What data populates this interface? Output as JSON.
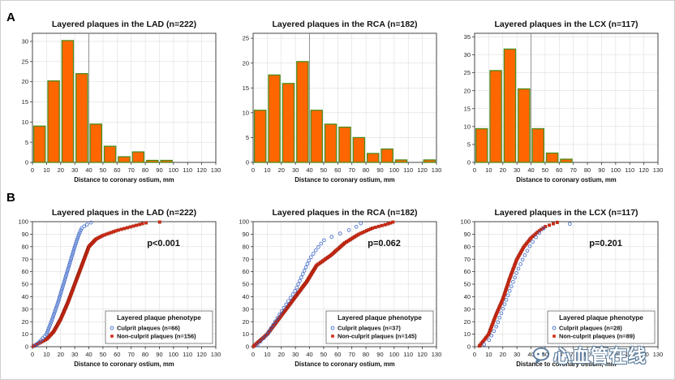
{
  "panel_labels": [
    "A",
    "B"
  ],
  "colors": {
    "bar_fill": "#ff6600",
    "bar_stroke": "#4c8c1c",
    "culprit": "#3a66c8",
    "nonculprit": "#d02a14",
    "axis": "#333333",
    "grid": "#dddddd",
    "divider": "#888888"
  },
  "chart_data": [
    {
      "id": "A1",
      "panel": "A",
      "type": "bar",
      "title": "Layered plaques in the LAD (n=222)",
      "xlabel": "Distance to coronary ostium, mm",
      "ylabel": "",
      "xlim": [
        0,
        130
      ],
      "ylim": [
        0,
        32
      ],
      "xticks": [
        "0",
        "10",
        "20",
        "30",
        "40",
        "50",
        "60",
        "70",
        "80",
        "90",
        "100",
        "110",
        "120",
        "130"
      ],
      "yticks": [
        "0",
        "5",
        "10",
        "15",
        "20",
        "25",
        "30"
      ],
      "reference_line_x": 40,
      "bins": [
        "0-10",
        "10-20",
        "20-30",
        "30-40",
        "40-50",
        "50-60",
        "60-70",
        "70-80",
        "80-90",
        "90-100"
      ],
      "values": [
        9,
        20.2,
        30.2,
        22,
        9.5,
        4,
        1.4,
        2.6,
        0.5,
        0.5
      ]
    },
    {
      "id": "A2",
      "panel": "A",
      "type": "bar",
      "title": "Layered plaques in the RCA (n=182)",
      "xlabel": "Distance to coronary ostium, mm",
      "ylabel": "",
      "xlim": [
        0,
        130
      ],
      "ylim": [
        0,
        26
      ],
      "xticks": [
        "0",
        "10",
        "20",
        "30",
        "40",
        "50",
        "60",
        "70",
        "80",
        "90",
        "100",
        "110",
        "120",
        "130"
      ],
      "yticks": [
        "0",
        "5",
        "10",
        "15",
        "20",
        "25"
      ],
      "reference_line_x": 40,
      "bins": [
        "0-10",
        "10-20",
        "20-30",
        "30-40",
        "40-50",
        "50-60",
        "60-70",
        "70-80",
        "80-90",
        "90-100",
        "100-110",
        "110-120",
        "120-130"
      ],
      "values": [
        10.5,
        17.6,
        15.9,
        20.3,
        10.5,
        7.7,
        7.1,
        5,
        1.8,
        2.7,
        0.5,
        0,
        0.5
      ]
    },
    {
      "id": "A3",
      "panel": "A",
      "type": "bar",
      "title": "Layered plaques in the LCX (n=117)",
      "xlabel": "Distance to coronary ostium, mm",
      "ylabel": "",
      "xlim": [
        0,
        130
      ],
      "ylim": [
        0,
        36
      ],
      "xticks": [
        "0",
        "10",
        "20",
        "30",
        "40",
        "50",
        "60",
        "70",
        "80",
        "90",
        "100",
        "110",
        "120",
        "130"
      ],
      "yticks": [
        "0",
        "5",
        "10",
        "15",
        "20",
        "25",
        "30",
        "35"
      ],
      "reference_line_x": 40,
      "bins": [
        "0-10",
        "10-20",
        "20-30",
        "30-40",
        "40-50",
        "50-60",
        "60-70"
      ],
      "values": [
        9.4,
        25.6,
        31.6,
        20.5,
        9.4,
        2.6,
        0.9
      ]
    },
    {
      "id": "B1",
      "panel": "B",
      "type": "scatter",
      "title": "Layered plaques in the LAD (n=222)",
      "xlabel": "Distance to coronary ostium, mm",
      "ylabel": "",
      "xlim": [
        0,
        130
      ],
      "ylim": [
        0,
        100
      ],
      "xticks": [
        "0",
        "10",
        "20",
        "30",
        "40",
        "50",
        "60",
        "70",
        "80",
        "90",
        "100",
        "110",
        "120",
        "130"
      ],
      "yticks": [
        "0",
        "10",
        "20",
        "30",
        "40",
        "50",
        "60",
        "70",
        "80",
        "90",
        "100"
      ],
      "p_value": "p<0.001",
      "legend_title": "Layered plaque phenotype",
      "series": [
        {
          "name": "Culprit plaques (n=66)",
          "marker": "circle",
          "n": 66,
          "curve": [
            [
              1,
              0
            ],
            [
              5,
              4
            ],
            [
              10,
              10
            ],
            [
              14,
              22
            ],
            [
              18,
              35
            ],
            [
              22,
              50
            ],
            [
              26,
              65
            ],
            [
              30,
              80
            ],
            [
              33,
              90
            ],
            [
              35,
              95
            ],
            [
              39,
              98
            ],
            [
              43,
              100
            ]
          ]
        },
        {
          "name": "Non-culprit plaques (n=156)",
          "marker": "square",
          "n": 156,
          "curve": [
            [
              0,
              0
            ],
            [
              10,
              6
            ],
            [
              15,
              12
            ],
            [
              20,
              22
            ],
            [
              25,
              35
            ],
            [
              30,
              50
            ],
            [
              35,
              65
            ],
            [
              40,
              80
            ],
            [
              45,
              86
            ],
            [
              50,
              89
            ],
            [
              60,
              93
            ],
            [
              70,
              96
            ],
            [
              80,
              99
            ],
            [
              95,
              100
            ]
          ]
        }
      ]
    },
    {
      "id": "B2",
      "panel": "B",
      "type": "scatter",
      "title": "Layered plaques in the RCA (n=182)",
      "xlabel": "Distance to coronary ostium, mm",
      "ylabel": "",
      "xlim": [
        0,
        130
      ],
      "ylim": [
        0,
        100
      ],
      "xticks": [
        "0",
        "10",
        "20",
        "30",
        "40",
        "50",
        "60",
        "70",
        "80",
        "90",
        "100",
        "110",
        "120",
        "130"
      ],
      "yticks": [
        "0",
        "10",
        "20",
        "30",
        "40",
        "50",
        "60",
        "70",
        "80",
        "90",
        "100"
      ],
      "p_value": "p=0.062",
      "legend_title": "Layered plaque phenotype",
      "series": [
        {
          "name": "Culprit plaques (n=37)",
          "marker": "circle",
          "n": 37,
          "curve": [
            [
              2,
              0
            ],
            [
              10,
              10
            ],
            [
              20,
              28
            ],
            [
              30,
              45
            ],
            [
              36,
              60
            ],
            [
              40,
              70
            ],
            [
              45,
              78
            ],
            [
              50,
              85
            ],
            [
              56,
              88
            ],
            [
              65,
              92
            ],
            [
              72,
              95
            ],
            [
              78,
              100
            ]
          ]
        },
        {
          "name": "Non-culprit plaques (n=145)",
          "marker": "square",
          "n": 145,
          "curve": [
            [
              0,
              0
            ],
            [
              10,
              10
            ],
            [
              20,
              25
            ],
            [
              30,
              40
            ],
            [
              38,
              52
            ],
            [
              45,
              65
            ],
            [
              55,
              73
            ],
            [
              65,
              83
            ],
            [
              75,
              90
            ],
            [
              85,
              95
            ],
            [
              95,
              98
            ],
            [
              100,
              100
            ],
            [
              122,
              100
            ]
          ]
        }
      ]
    },
    {
      "id": "B3",
      "panel": "B",
      "type": "scatter",
      "title": "Layered plaques in the LCX (n=117)",
      "xlabel": "Distance to coronary ostium, mm",
      "ylabel": "",
      "xlim": [
        0,
        130
      ],
      "ylim": [
        0,
        100
      ],
      "xticks": [
        "0",
        "10",
        "20",
        "30",
        "40",
        "50",
        "60",
        "70",
        "80",
        "90",
        "100",
        "110",
        "120",
        "130"
      ],
      "yticks": [
        "0",
        "10",
        "20",
        "30",
        "40",
        "50",
        "60",
        "70",
        "80",
        "90",
        "100"
      ],
      "p_value": "p=0.201",
      "legend_title": "Layered plaque phenotype",
      "series": [
        {
          "name": "Culprit plaques (n=28)",
          "marker": "circle",
          "n": 28,
          "curve": [
            [
              5,
              0
            ],
            [
              10,
              5
            ],
            [
              15,
              15
            ],
            [
              20,
              30
            ],
            [
              25,
              45
            ],
            [
              30,
              60
            ],
            [
              35,
              72
            ],
            [
              40,
              82
            ],
            [
              45,
              90
            ],
            [
              50,
              96
            ],
            [
              65,
              98
            ],
            [
              88,
              100
            ]
          ]
        },
        {
          "name": "Non-culprit plaques (n=89)",
          "marker": "square",
          "n": 89,
          "curve": [
            [
              3,
              0
            ],
            [
              10,
              10
            ],
            [
              15,
              25
            ],
            [
              20,
              38
            ],
            [
              25,
              55
            ],
            [
              30,
              70
            ],
            [
              35,
              80
            ],
            [
              40,
              87
            ],
            [
              45,
              92
            ],
            [
              50,
              96
            ],
            [
              60,
              100
            ]
          ]
        }
      ]
    }
  ],
  "watermark": {
    "text": "心血管在线"
  }
}
